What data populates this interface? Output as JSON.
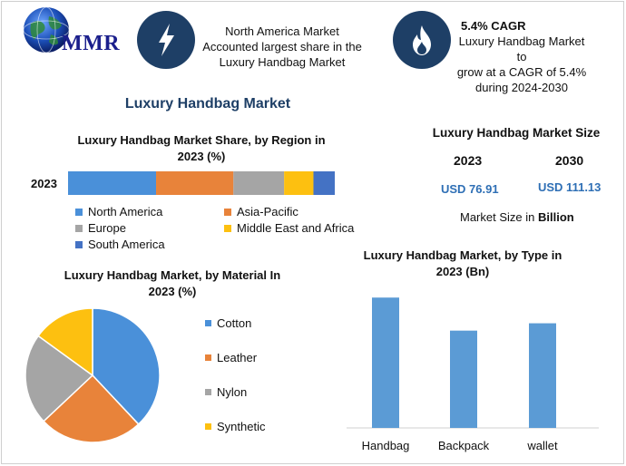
{
  "header": {
    "logo_text": "MMR",
    "logo_icon": "globe-icon",
    "region_badge_icon": "lightning-icon",
    "region_text": [
      "North America Market",
      "Accounted largest share in the",
      "Luxury Handbag Market"
    ],
    "cagr_badge_icon": "flame-icon",
    "cagr_title": "5.4% CAGR",
    "cagr_text": [
      "Luxury Handbag Market to",
      "grow at a CAGR of 5.4%",
      "during 2024-2030"
    ]
  },
  "main_title": "Luxury Handbag Market",
  "market_size": {
    "title": "Luxury Handbag Market Size",
    "year_a": "2023",
    "year_b": "2030",
    "value_a": "USD 76.91",
    "value_b": "USD 111.13",
    "unit_prefix": "Market Size in ",
    "unit_bold": "Billion"
  },
  "colors": {
    "north_america": "#4a90d9",
    "asia_pacific": "#e8833a",
    "europe": "#a5a5a5",
    "mea": "#fdc010",
    "south_america": "#4472c4",
    "bar": "#5b9bd5"
  },
  "chart_data": [
    {
      "type": "bar",
      "orientation": "horizontal-stacked",
      "title": [
        "Luxury Handbag Market Share, by Region in",
        "2023 (%)"
      ],
      "categories": [
        "2023"
      ],
      "series": [
        {
          "name": "North America",
          "values": [
            33
          ]
        },
        {
          "name": "Asia-Pacific",
          "values": [
            29
          ]
        },
        {
          "name": "Europe",
          "values": [
            19
          ]
        },
        {
          "name": "Middle East and Africa",
          "values": [
            11
          ]
        },
        {
          "name": "South America",
          "values": [
            8
          ]
        }
      ],
      "legend_placement": "bottom"
    },
    {
      "type": "pie",
      "title": [
        "Luxury Handbag Market, by Material In",
        "2023 (%)"
      ],
      "slices": [
        {
          "name": "Cotton",
          "value": 38
        },
        {
          "name": "Leather",
          "value": 25
        },
        {
          "name": "Nylon",
          "value": 22
        },
        {
          "name": "Synthetic",
          "value": 15
        }
      ],
      "legend_placement": "right"
    },
    {
      "type": "bar",
      "title": [
        "Luxury Handbag Market, by Type in",
        "2023 (Bn)"
      ],
      "categories": [
        "Handbag",
        "Backpack",
        "wallet"
      ],
      "values": [
        35.5,
        26.5,
        28.5
      ],
      "ylim": [
        0,
        40
      ],
      "grid": false
    }
  ]
}
